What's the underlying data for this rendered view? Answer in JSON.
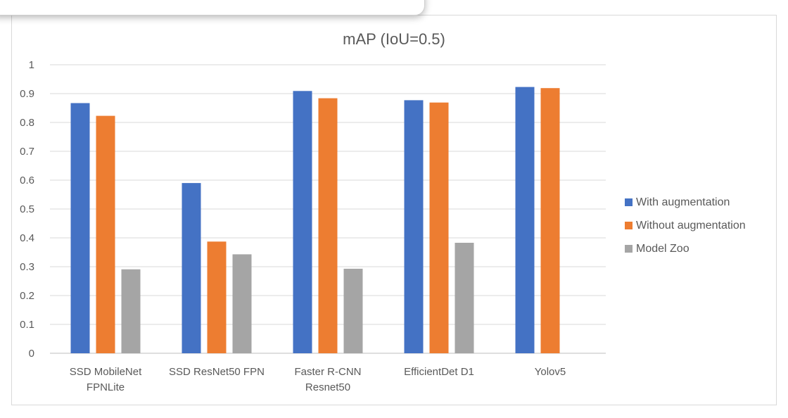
{
  "chart_data": {
    "type": "bar",
    "title": "mAP (IoU=0.5)",
    "xlabel": "",
    "ylabel": "",
    "ylim": [
      0,
      1
    ],
    "yticks": [
      "0",
      "0.1",
      "0.2",
      "0.3",
      "0.4",
      "0.5",
      "0.6",
      "0.7",
      "0.8",
      "0.9",
      "1"
    ],
    "grid": true,
    "legend_position": "right",
    "categories": [
      [
        "SSD MobileNet",
        "FPNLite"
      ],
      [
        "SSD ResNet50 FPN"
      ],
      [
        "Faster R-CNN",
        "Resnet50"
      ],
      [
        "EfficientDet D1"
      ],
      [
        "Yolov5"
      ]
    ],
    "series": [
      {
        "name": "With augmentation",
        "color": "#4472c4",
        "values": [
          0.867,
          0.59,
          0.909,
          0.877,
          0.923
        ]
      },
      {
        "name": "Without augmentation",
        "color": "#ed7d31",
        "values": [
          0.823,
          0.387,
          0.884,
          0.869,
          0.919
        ]
      },
      {
        "name": "Model Zoo",
        "color": "#a5a5a5",
        "values": [
          0.291,
          0.343,
          0.293,
          0.383,
          null
        ]
      }
    ]
  }
}
